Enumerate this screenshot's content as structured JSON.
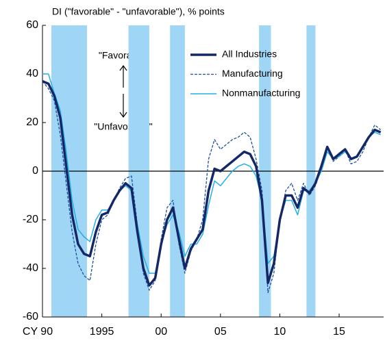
{
  "chart_data": {
    "type": "line",
    "title": "DI (\"favorable\" - \"unfavorable\"), % points",
    "annotations": [
      "\"Favorable\"",
      "\"Unfavorable\""
    ],
    "x": [
      1990.0,
      1990.5,
      1991.0,
      1991.5,
      1992.0,
      1992.5,
      1993.0,
      1993.5,
      1994.0,
      1994.5,
      1995.0,
      1995.5,
      1996.0,
      1996.5,
      1997.0,
      1997.5,
      1998.0,
      1998.5,
      1999.0,
      1999.5,
      2000.0,
      2000.5,
      2001.0,
      2001.5,
      2002.0,
      2002.5,
      2003.0,
      2003.5,
      2004.0,
      2004.5,
      2005.0,
      2005.5,
      2006.0,
      2006.5,
      2007.0,
      2007.5,
      2008.0,
      2008.5,
      2009.0,
      2009.5,
      2010.0,
      2010.5,
      2011.0,
      2011.5,
      2012.0,
      2012.5,
      2013.0,
      2013.5,
      2014.0,
      2014.5,
      2015.0,
      2015.5,
      2016.0,
      2016.5,
      2017.0,
      2017.5,
      2018.0,
      2018.5
    ],
    "series": [
      {
        "name": "All Industries",
        "color": "#142868",
        "width": 3.5,
        "dashed": false,
        "values": [
          37,
          36,
          31,
          22,
          2,
          -18,
          -30,
          -34,
          -35,
          -25,
          -18,
          -17,
          -12,
          -8,
          -5,
          -7,
          -25,
          -40,
          -47,
          -44,
          -30,
          -20,
          -15,
          -28,
          -40,
          -32,
          -28,
          -24,
          -8,
          1,
          0,
          2,
          4,
          6,
          8,
          7,
          2,
          -12,
          -46,
          -38,
          -20,
          -10,
          -10,
          -15,
          -7,
          -9,
          -5,
          2,
          10,
          5,
          7,
          9,
          5,
          6,
          10,
          14,
          17,
          16
        ]
      },
      {
        "name": "Manufacturing",
        "color": "#1f4e9c",
        "width": 1.3,
        "dashed": true,
        "values": [
          37,
          34,
          29,
          15,
          -5,
          -25,
          -38,
          -43,
          -45,
          -30,
          -20,
          -18,
          -12,
          -7,
          -3,
          -2,
          -22,
          -42,
          -49,
          -45,
          -28,
          -15,
          -12,
          -30,
          -42,
          -33,
          -28,
          -20,
          5,
          13,
          9,
          11,
          13,
          14,
          16,
          14,
          5,
          -8,
          -50,
          -42,
          -20,
          -8,
          -5,
          -12,
          -5,
          -10,
          -6,
          1,
          10,
          4,
          6,
          9,
          3,
          4,
          8,
          14,
          19,
          17
        ]
      },
      {
        "name": "Nonmanufacturing",
        "color": "#22aee6",
        "width": 1.5,
        "dashed": false,
        "values": [
          40,
          40,
          32,
          25,
          8,
          -12,
          -24,
          -27,
          -29,
          -20,
          -16,
          -16,
          -12,
          -8,
          -6,
          -8,
          -22,
          -35,
          -42,
          -42,
          -30,
          -22,
          -18,
          -25,
          -35,
          -30,
          -30,
          -26,
          -14,
          -4,
          -6,
          -3,
          0,
          2,
          3,
          2,
          -2,
          -12,
          -38,
          -35,
          -20,
          -12,
          -12,
          -18,
          -8,
          -8,
          -5,
          0,
          8,
          5,
          6,
          8,
          5,
          6,
          10,
          14,
          16,
          15
        ]
      }
    ],
    "shading": [
      [
        1990.75,
        1993.75
      ],
      [
        1997.25,
        1999.0
      ],
      [
        2000.75,
        2002.0
      ],
      [
        2008.25,
        2009.25
      ],
      [
        2012.25,
        2013.0
      ]
    ],
    "shading_color": "#9fd5f5",
    "xlim": [
      1990,
      2018.75
    ],
    "xticks": [
      {
        "value": 1990,
        "label": "CY 90"
      },
      1995,
      {
        "value": 2000,
        "label": "00"
      },
      {
        "value": 2005,
        "label": "05"
      },
      {
        "value": 2010,
        "label": "10"
      },
      {
        "value": 2015,
        "label": "15"
      }
    ],
    "ylim": [
      -60,
      60
    ],
    "yticks": [
      -60,
      -40,
      -20,
      0,
      20,
      40,
      60
    ],
    "legend": "upper right"
  }
}
